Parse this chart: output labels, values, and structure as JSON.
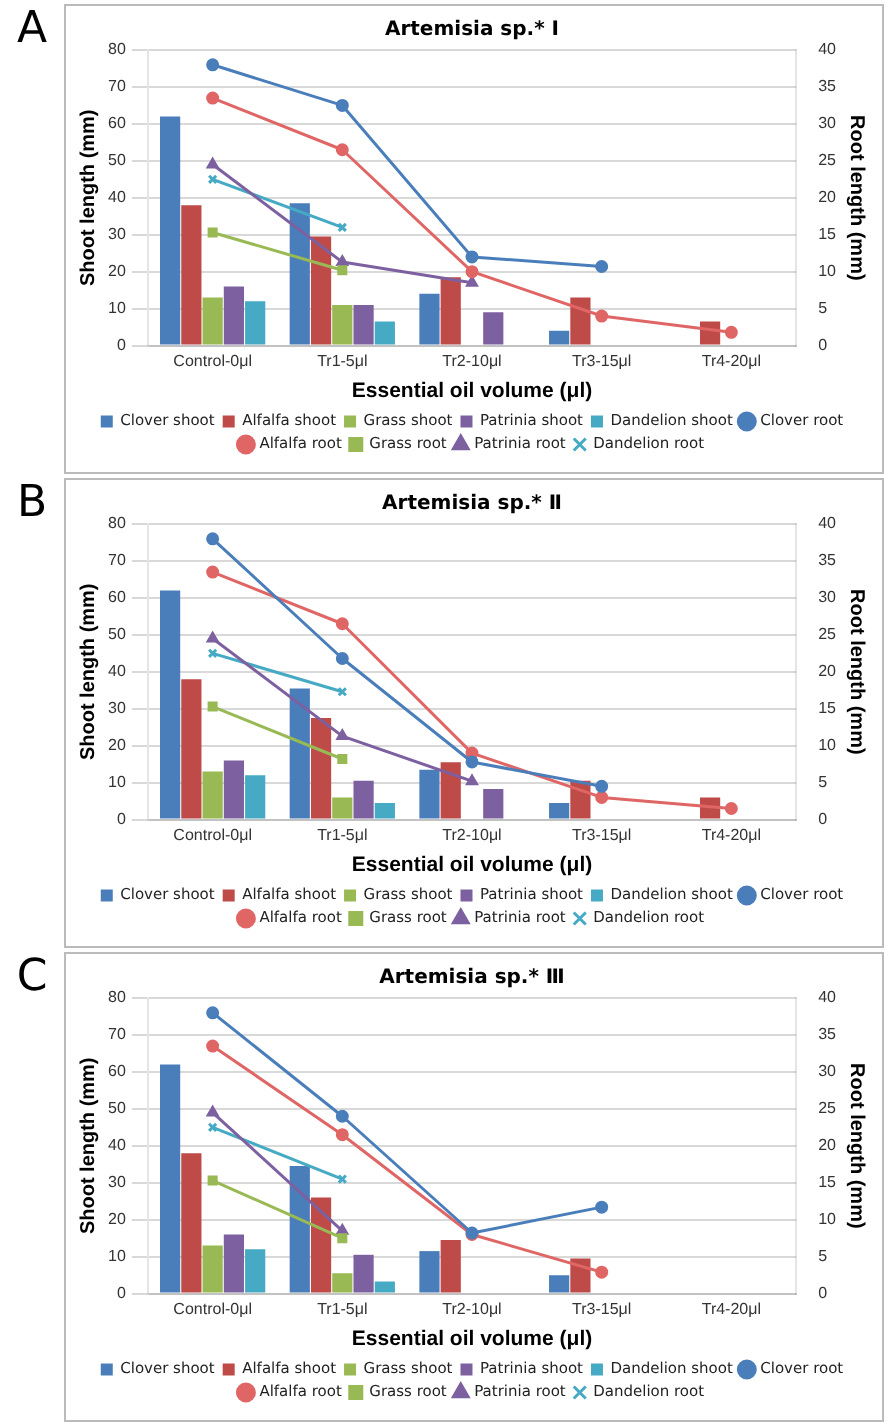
{
  "chart_data": [
    {
      "type": "bar",
      "title": "Artemisia sp.* Ⅰ",
      "xlabel": "Essential oil volume (μl)",
      "ylabel": "Shoot length (mm)",
      "y2label": "Root length (mm)",
      "annotations": [
        "A"
      ],
      "categories": [
        "Control-0μl",
        "Tr1-5μl",
        "Tr2-10μl",
        "Tr3-15μl",
        "Tr4-20μl"
      ],
      "ylim": [
        0,
        80
      ],
      "yticks": [
        0,
        10,
        20,
        30,
        40,
        50,
        60,
        70,
        80
      ],
      "y2lim": [
        0,
        40
      ],
      "y2ticks": [
        0,
        5,
        10,
        15,
        20,
        25,
        30,
        35,
        40
      ],
      "grid": "y",
      "legend": "bottom",
      "series": [
        {
          "name": "Clover shoot",
          "color": "#4a7ebb",
          "values": [
            62,
            38.5,
            14,
            4,
            null
          ]
        },
        {
          "name": "Alfalfa shoot",
          "color": "#be4b48",
          "values": [
            38,
            29.5,
            18.5,
            13,
            6.5
          ]
        },
        {
          "name": "Grass shoot",
          "color": "#98b954",
          "values": [
            13,
            11,
            null,
            null,
            null
          ]
        },
        {
          "name": "Patrinia shoot",
          "color": "#7d60a0",
          "values": [
            16,
            11,
            9,
            null,
            null
          ]
        },
        {
          "name": "Dandelion shoot",
          "color": "#46aac5",
          "values": [
            12,
            6.5,
            null,
            null,
            null
          ]
        },
        {
          "name": "Clover root",
          "type": "line",
          "axis": "y2",
          "marker": "circle",
          "color": "#4a7ebb",
          "values": [
            38,
            32.5,
            12,
            10.7,
            null
          ]
        },
        {
          "name": "Alfalfa root",
          "type": "line",
          "axis": "y2",
          "marker": "circle",
          "color": "#e06666",
          "values": [
            33.5,
            26.5,
            10,
            4,
            1.8
          ]
        },
        {
          "name": "Grass root",
          "type": "line",
          "axis": "y2",
          "marker": "square",
          "color": "#98b954",
          "values": [
            15.3,
            10.2,
            null,
            null,
            null
          ]
        },
        {
          "name": "Patrinia root",
          "type": "line",
          "axis": "y2",
          "marker": "triangle",
          "color": "#7d60a0",
          "values": [
            24.5,
            11.3,
            8.5,
            null,
            null
          ]
        },
        {
          "name": "Dandelion root",
          "type": "line",
          "axis": "y2",
          "marker": "cross",
          "color": "#46aac5",
          "values": [
            22.5,
            16,
            null,
            null,
            null
          ]
        }
      ]
    },
    {
      "type": "bar",
      "title": "Artemisia sp.* Ⅱ",
      "xlabel": "Essential oil volume (μl)",
      "ylabel": "Shoot length (mm)",
      "y2label": "Root length (mm)",
      "annotations": [
        "B"
      ],
      "categories": [
        "Control-0μl",
        "Tr1-5μl",
        "Tr2-10μl",
        "Tr3-15μl",
        "Tr4-20μl"
      ],
      "ylim": [
        0,
        80
      ],
      "yticks": [
        0,
        10,
        20,
        30,
        40,
        50,
        60,
        70,
        80
      ],
      "y2lim": [
        0,
        40
      ],
      "y2ticks": [
        0,
        5,
        10,
        15,
        20,
        25,
        30,
        35,
        40
      ],
      "grid": "y",
      "legend": "bottom",
      "series": [
        {
          "name": "Clover shoot",
          "color": "#4a7ebb",
          "values": [
            62,
            35.5,
            13.5,
            4.5,
            null
          ]
        },
        {
          "name": "Alfalfa shoot",
          "color": "#be4b48",
          "values": [
            38,
            27.5,
            15.5,
            10.5,
            6
          ]
        },
        {
          "name": "Grass shoot",
          "color": "#98b954",
          "values": [
            13,
            6,
            null,
            null,
            null
          ]
        },
        {
          "name": "Patrinia shoot",
          "color": "#7d60a0",
          "values": [
            16,
            10.5,
            8.3,
            null,
            null
          ]
        },
        {
          "name": "Dandelion shoot",
          "color": "#46aac5",
          "values": [
            12,
            4.5,
            null,
            null,
            null
          ]
        },
        {
          "name": "Clover root",
          "type": "line",
          "axis": "y2",
          "marker": "circle",
          "color": "#4a7ebb",
          "values": [
            38,
            21.8,
            7.8,
            4.5,
            null
          ]
        },
        {
          "name": "Alfalfa root",
          "type": "line",
          "axis": "y2",
          "marker": "circle",
          "color": "#e06666",
          "values": [
            33.5,
            26.5,
            9,
            3,
            1.5
          ]
        },
        {
          "name": "Grass root",
          "type": "line",
          "axis": "y2",
          "marker": "square",
          "color": "#98b954",
          "values": [
            15.3,
            8.2,
            null,
            null,
            null
          ]
        },
        {
          "name": "Patrinia root",
          "type": "line",
          "axis": "y2",
          "marker": "triangle",
          "color": "#7d60a0",
          "values": [
            24.5,
            11.3,
            5.2,
            null,
            null
          ]
        },
        {
          "name": "Dandelion root",
          "type": "line",
          "axis": "y2",
          "marker": "cross",
          "color": "#46aac5",
          "values": [
            22.5,
            17.3,
            null,
            null,
            null
          ]
        }
      ]
    },
    {
      "type": "bar",
      "title": "Artemisia sp.* Ⅲ",
      "xlabel": "Essential oil volume (μl)",
      "ylabel": "Shoot length (mm)",
      "y2label": "Root length (mm)",
      "annotations": [
        "C"
      ],
      "categories": [
        "Control-0μl",
        "Tr1-5μl",
        "Tr2-10μl",
        "Tr3-15μl",
        "Tr4-20μl"
      ],
      "ylim": [
        0,
        80
      ],
      "yticks": [
        0,
        10,
        20,
        30,
        40,
        50,
        60,
        70,
        80
      ],
      "y2lim": [
        0,
        40
      ],
      "y2ticks": [
        0,
        5,
        10,
        15,
        20,
        25,
        30,
        35,
        40
      ],
      "grid": "y",
      "legend": "bottom",
      "series": [
        {
          "name": "Clover shoot",
          "color": "#4a7ebb",
          "values": [
            62,
            34.5,
            11.5,
            5,
            null
          ]
        },
        {
          "name": "Alfalfa shoot",
          "color": "#be4b48",
          "values": [
            38,
            26,
            14.5,
            9.5,
            null
          ]
        },
        {
          "name": "Grass shoot",
          "color": "#98b954",
          "values": [
            13,
            5.5,
            null,
            null,
            null
          ]
        },
        {
          "name": "Patrinia shoot",
          "color": "#7d60a0",
          "values": [
            16,
            10.5,
            null,
            null,
            null
          ]
        },
        {
          "name": "Dandelion shoot",
          "color": "#46aac5",
          "values": [
            12,
            3.3,
            null,
            null,
            null
          ]
        },
        {
          "name": "Clover root",
          "type": "line",
          "axis": "y2",
          "marker": "circle",
          "color": "#4a7ebb",
          "values": [
            38,
            24,
            8.2,
            11.7,
            null
          ]
        },
        {
          "name": "Alfalfa root",
          "type": "line",
          "axis": "y2",
          "marker": "circle",
          "color": "#e06666",
          "values": [
            33.5,
            21.5,
            8,
            2.9,
            null
          ]
        },
        {
          "name": "Grass root",
          "type": "line",
          "axis": "y2",
          "marker": "square",
          "color": "#98b954",
          "values": [
            15.3,
            7.5,
            null,
            null,
            null
          ]
        },
        {
          "name": "Patrinia root",
          "type": "line",
          "axis": "y2",
          "marker": "triangle",
          "color": "#7d60a0",
          "values": [
            24.5,
            8.5,
            null,
            null,
            null
          ]
        },
        {
          "name": "Dandelion root",
          "type": "line",
          "axis": "y2",
          "marker": "cross",
          "color": "#46aac5",
          "values": [
            22.5,
            15.5,
            null,
            null,
            null
          ]
        }
      ]
    }
  ]
}
